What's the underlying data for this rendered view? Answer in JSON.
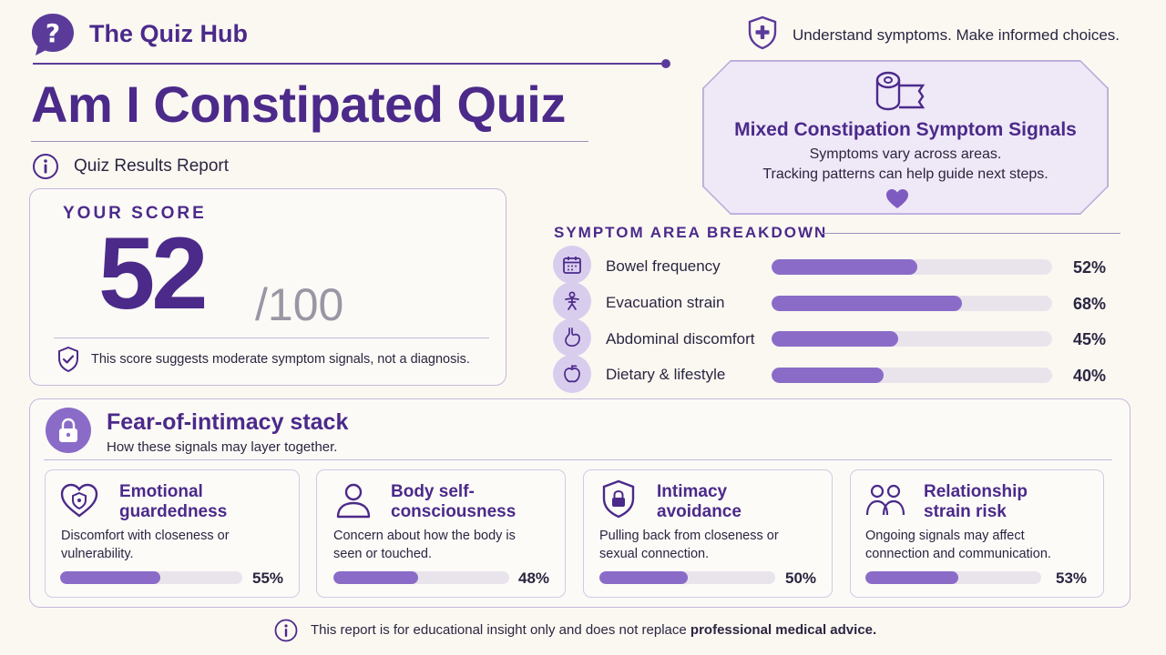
{
  "brand": {
    "name": "The Quiz Hub"
  },
  "title": "Am I Constipated Quiz",
  "subtitle": "Quiz Results Report",
  "tagline": "Understand symptoms. Make informed choices.",
  "signal_card": {
    "title": "Mixed Constipation Symptom Signals",
    "line1": "Symptoms vary across areas.",
    "line2": "Tracking patterns can help guide next steps."
  },
  "score": {
    "label": "YOUR SCORE",
    "value": "52",
    "max": "/100",
    "note": "This score suggests moderate symptom signals, not a diagnosis."
  },
  "breakdown": {
    "heading": "SYMPTOM AREA BREAKDOWN",
    "items": [
      {
        "label": "Bowel frequency",
        "icon": "calendar-icon",
        "percent": 52,
        "percent_text": "52%"
      },
      {
        "label": "Evacuation strain",
        "icon": "strain-figure-icon",
        "percent": 68,
        "percent_text": "68%"
      },
      {
        "label": "Abdominal discomfort",
        "icon": "stomach-icon",
        "percent": 45,
        "percent_text": "45%"
      },
      {
        "label": "Dietary & lifestyle",
        "icon": "apple-icon",
        "percent": 40,
        "percent_text": "40%"
      }
    ]
  },
  "stack": {
    "title": "Fear-of-intimacy stack",
    "subtitle": "How these signals may layer together.",
    "cards": [
      {
        "title_l1": "Emotional",
        "title_l2": "guardedness",
        "desc_l1": "Discomfort with closeness or",
        "desc_l2": "vulnerability.",
        "icon": "heart-shield-icon",
        "percent": 55,
        "percent_text": "55%"
      },
      {
        "title_l1": "Body self-",
        "title_l2": "consciousness",
        "desc_l1": "Concern about how the body is",
        "desc_l2": "seen or touched.",
        "icon": "person-icon",
        "percent": 48,
        "percent_text": "48%"
      },
      {
        "title_l1": "Intimacy",
        "title_l2": "avoidance",
        "desc_l1": "Pulling back from closeness or",
        "desc_l2": "sexual connection.",
        "icon": "lock-shield-icon",
        "percent": 50,
        "percent_text": "50%"
      },
      {
        "title_l1": "Relationship",
        "title_l2": "strain risk",
        "desc_l1": "Ongoing signals may affect",
        "desc_l2": "connection and communication.",
        "icon": "two-people-icon",
        "percent": 53,
        "percent_text": "53%"
      }
    ]
  },
  "footer": {
    "text": "This report is for educational insight only and does not replace ",
    "strong": "professional medical advice."
  },
  "colors": {
    "accent": "#4b2a8a",
    "bar": "#8a6cc8",
    "track": "#e9e4ec",
    "background": "#fbf8f2"
  }
}
